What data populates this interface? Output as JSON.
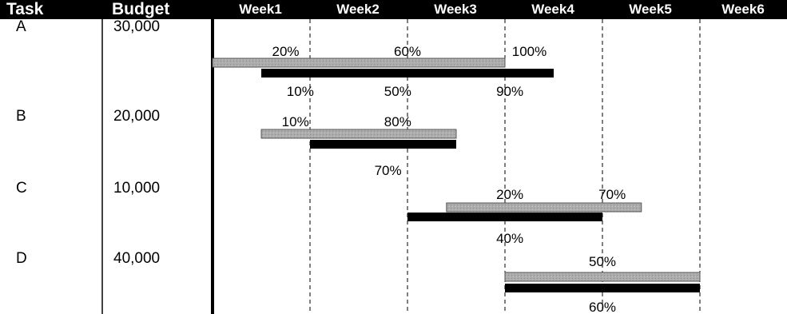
{
  "chart_data": {
    "type": "gantt",
    "columns": {
      "task": "Task",
      "budget": "Budget"
    },
    "weeks": [
      "Week1",
      "Week2",
      "Week3",
      "Week4",
      "Week5",
      "Week6"
    ],
    "legend": [],
    "colors": {
      "planned": "#a6a6a6",
      "actual": "#000000",
      "header": "#000000"
    },
    "tasks": [
      {
        "task": "A",
        "budget": "30,000",
        "planned": {
          "start": 0,
          "end": 3,
          "labels": [
            {
              "at": 0.75,
              "text": "20%"
            },
            {
              "at": 2.0,
              "text": "60%"
            },
            {
              "at": 3.25,
              "text": "100%"
            }
          ]
        },
        "actual": {
          "start": 0.5,
          "end": 3.5,
          "labels": [
            {
              "at": 0.9,
              "text": "10%"
            },
            {
              "at": 1.9,
              "text": "50%"
            },
            {
              "at": 3.05,
              "text": "90%"
            }
          ]
        }
      },
      {
        "task": "B",
        "budget": "20,000",
        "planned": {
          "start": 0.5,
          "end": 2.5,
          "labels": [
            {
              "at": 0.85,
              "text": "10%"
            },
            {
              "at": 1.9,
              "text": "80%"
            }
          ]
        },
        "actual": {
          "start": 1.0,
          "end": 2.5,
          "labels": [
            {
              "at": 1.8,
              "text": "70%"
            }
          ]
        }
      },
      {
        "task": "C",
        "budget": "10,000",
        "planned": {
          "start": 2.4,
          "end": 4.4,
          "labels": [
            {
              "at": 3.05,
              "text": "20%"
            },
            {
              "at": 4.1,
              "text": "70%"
            }
          ]
        },
        "actual": {
          "start": 2.0,
          "end": 4.0,
          "labels": [
            {
              "at": 3.05,
              "text": "40%"
            }
          ]
        }
      },
      {
        "task": "D",
        "budget": "40,000",
        "planned": {
          "start": 3.0,
          "end": 5.0,
          "labels": [
            {
              "at": 4.0,
              "text": "50%"
            }
          ]
        },
        "actual": {
          "start": 3.0,
          "end": 5.0,
          "labels": [
            {
              "at": 4.0,
              "text": "60%"
            }
          ]
        }
      }
    ]
  }
}
